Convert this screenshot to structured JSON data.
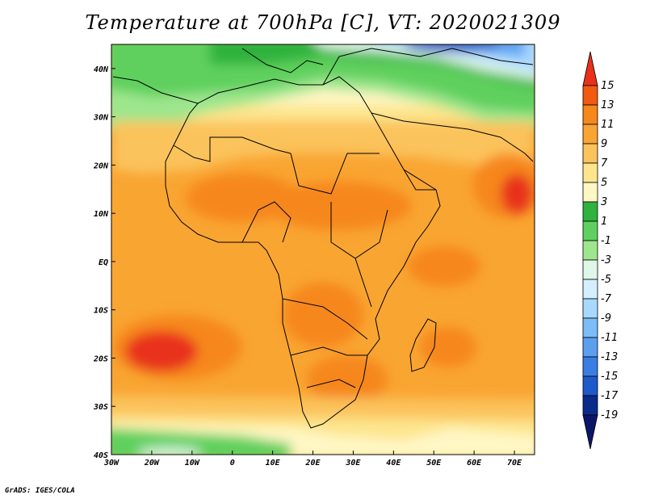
{
  "title": "Temperature at 700hPa [C], VT: 2020021309",
  "credit": "GrADS: IGES/COLA",
  "map": {
    "lon_range": [
      -30,
      75
    ],
    "lat_range": [
      -40,
      45
    ],
    "lat_ticks": [
      "40N",
      "30N",
      "20N",
      "10N",
      "EQ",
      "10S",
      "20S",
      "30S",
      "40S"
    ],
    "lon_ticks": [
      "30W",
      "20W",
      "10W",
      "0",
      "10E",
      "20E",
      "30E",
      "40E",
      "50E",
      "60E",
      "70E"
    ]
  },
  "colorbar": {
    "labels": [
      "15",
      "13",
      "11",
      "9",
      "7",
      "5",
      "3",
      "1",
      "-1",
      "-3",
      "-5",
      "-7",
      "-9",
      "-11",
      "-13",
      "-15",
      "-17",
      "-19"
    ],
    "colors": [
      "#e8301a",
      "#f25a0f",
      "#f6871a",
      "#f9a532",
      "#fbc35c",
      "#fde58d",
      "#fff7c4",
      "#2fb23e",
      "#5fd05d",
      "#9ee68e",
      "#dff7e8",
      "#d4efff",
      "#a9d8ff",
      "#7cbcf7",
      "#5aa0ef",
      "#3a7ee3",
      "#1e5ac9",
      "#0a2b8c",
      "#0c1669"
    ]
  }
}
